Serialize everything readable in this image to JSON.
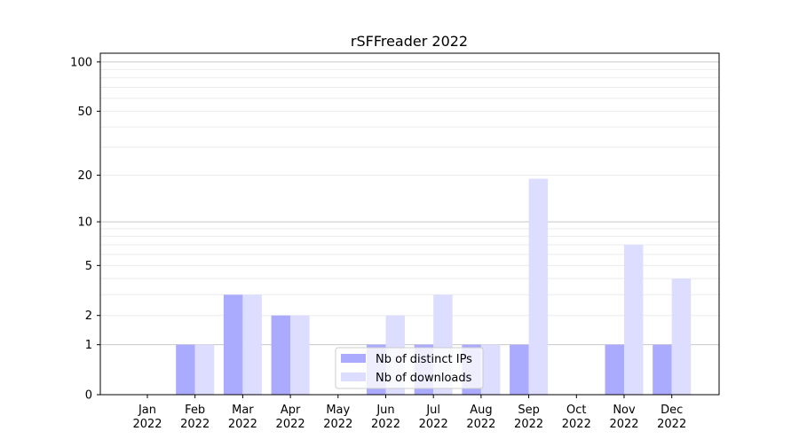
{
  "chart_data": {
    "type": "bar",
    "title": "rSFFreader 2022",
    "xlabel": "",
    "ylabel": "",
    "y_scale": "log(1+y)",
    "ylim": [
      0,
      113
    ],
    "y_ticks": [
      0,
      1,
      2,
      5,
      10,
      20,
      50,
      100
    ],
    "y_major_grid": [
      1,
      10,
      100
    ],
    "y_minor_grid": [
      2,
      3,
      4,
      5,
      6,
      7,
      8,
      9,
      20,
      30,
      40,
      50,
      60,
      70,
      80,
      90
    ],
    "grid": true,
    "legend_placement": "lower center",
    "categories": [
      [
        "Jan",
        "2022"
      ],
      [
        "Feb",
        "2022"
      ],
      [
        "Mar",
        "2022"
      ],
      [
        "Apr",
        "2022"
      ],
      [
        "May",
        "2022"
      ],
      [
        "Jun",
        "2022"
      ],
      [
        "Jul",
        "2022"
      ],
      [
        "Aug",
        "2022"
      ],
      [
        "Sep",
        "2022"
      ],
      [
        "Oct",
        "2022"
      ],
      [
        "Nov",
        "2022"
      ],
      [
        "Dec",
        "2022"
      ]
    ],
    "series": [
      {
        "name": "Nb of distinct IPs",
        "color": "#aaaaff",
        "values": [
          0,
          1,
          3,
          2,
          0,
          1,
          1,
          1,
          1,
          0,
          1,
          1
        ]
      },
      {
        "name": "Nb of downloads",
        "color": "#ddddff",
        "values": [
          0,
          1,
          3,
          2,
          0,
          2,
          3,
          1,
          19,
          0,
          7,
          4
        ]
      }
    ]
  }
}
